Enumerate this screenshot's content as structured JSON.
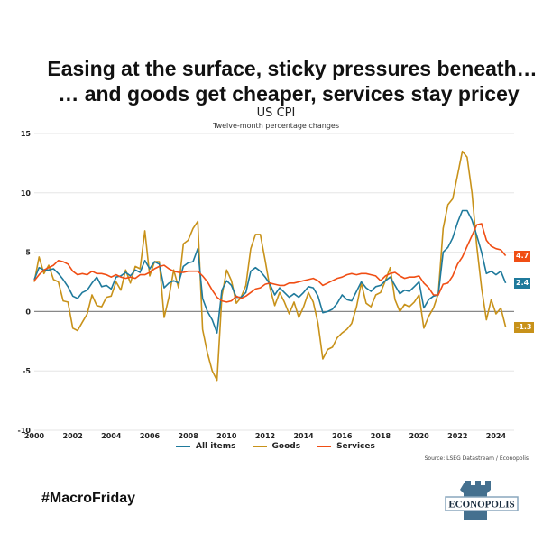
{
  "headline": {
    "line1": "Easing at the surface, sticky pressures beneath…",
    "line2": "… and goods get cheaper, services stay pricey"
  },
  "hashtag": "#MacroFriday",
  "logo": {
    "text": "ECONOPOLIS",
    "color": "#44708f"
  },
  "source": "Source: LSEG Datastream / Econopolis",
  "chart_data": {
    "type": "line",
    "title": "US CPI",
    "subtitle": "Twelve-month percentage changes",
    "xlabel": "",
    "ylabel": "",
    "xlim": [
      2000,
      2024.6
    ],
    "ylim": [
      -10,
      15
    ],
    "yticks": [
      15,
      10,
      5,
      0,
      -5,
      -10
    ],
    "yticklabels": [
      "15",
      "10",
      "5",
      "0",
      "-5",
      "-10"
    ],
    "xticks": [
      2000,
      2002,
      2004,
      2006,
      2008,
      2010,
      2012,
      2014,
      2016,
      2018,
      2020,
      2022,
      2024
    ],
    "xticklabels": [
      "2000",
      "2002",
      "2004",
      "2006",
      "2008",
      "2010",
      "2012",
      "2014",
      "2016",
      "2018",
      "2020",
      "2022",
      "2024"
    ],
    "grid": true,
    "legend_position": "bottom",
    "x": [
      2000.0,
      2000.25,
      2000.5,
      2000.75,
      2001.0,
      2001.25,
      2001.5,
      2001.75,
      2002.0,
      2002.25,
      2002.5,
      2002.75,
      2003.0,
      2003.25,
      2003.5,
      2003.75,
      2004.0,
      2004.25,
      2004.5,
      2004.75,
      2005.0,
      2005.25,
      2005.5,
      2005.75,
      2006.0,
      2006.25,
      2006.5,
      2006.75,
      2007.0,
      2007.25,
      2007.5,
      2007.75,
      2008.0,
      2008.25,
      2008.5,
      2008.75,
      2009.0,
      2009.25,
      2009.5,
      2009.75,
      2010.0,
      2010.25,
      2010.5,
      2010.75,
      2011.0,
      2011.25,
      2011.5,
      2011.75,
      2012.0,
      2012.25,
      2012.5,
      2012.75,
      2013.0,
      2013.25,
      2013.5,
      2013.75,
      2014.0,
      2014.25,
      2014.5,
      2014.75,
      2015.0,
      2015.25,
      2015.5,
      2015.75,
      2016.0,
      2016.25,
      2016.5,
      2016.75,
      2017.0,
      2017.25,
      2017.5,
      2017.75,
      2018.0,
      2018.25,
      2018.5,
      2018.75,
      2019.0,
      2019.25,
      2019.5,
      2019.75,
      2020.0,
      2020.25,
      2020.5,
      2020.75,
      2021.0,
      2021.25,
      2021.5,
      2021.75,
      2022.0,
      2022.25,
      2022.5,
      2022.75,
      2023.0,
      2023.25,
      2023.5,
      2023.75,
      2024.0,
      2024.25,
      2024.5
    ],
    "series": [
      {
        "name": "All items",
        "color": "#1f7a9c",
        "values": [
          2.7,
          3.7,
          3.5,
          3.5,
          3.6,
          3.2,
          2.7,
          2.1,
          1.3,
          1.1,
          1.6,
          1.8,
          2.4,
          2.9,
          2.1,
          2.2,
          1.9,
          2.9,
          3.0,
          3.3,
          3.0,
          3.5,
          3.3,
          4.3,
          3.6,
          4.2,
          4.0,
          2.0,
          2.4,
          2.6,
          2.4,
          3.8,
          4.1,
          4.2,
          5.3,
          1.1,
          0.0,
          -0.7,
          -1.8,
          1.8,
          2.6,
          2.2,
          1.2,
          1.2,
          1.6,
          3.4,
          3.7,
          3.4,
          2.9,
          2.3,
          1.4,
          2.0,
          1.6,
          1.2,
          1.5,
          1.2,
          1.6,
          2.1,
          2.0,
          1.3,
          -0.1,
          0.0,
          0.2,
          0.7,
          1.4,
          1.0,
          0.9,
          1.7,
          2.5,
          2.0,
          1.7,
          2.1,
          2.2,
          2.6,
          2.9,
          2.2,
          1.5,
          1.8,
          1.7,
          2.1,
          2.5,
          0.3,
          1.0,
          1.3,
          1.4,
          5.0,
          5.4,
          6.2,
          7.5,
          8.5,
          8.5,
          7.7,
          6.4,
          5.0,
          3.2,
          3.4,
          3.1,
          3.4,
          2.4
        ]
      },
      {
        "name": "Goods",
        "color": "#c8921a",
        "values": [
          2.5,
          4.6,
          3.2,
          3.9,
          2.7,
          2.5,
          0.9,
          0.8,
          -1.4,
          -1.6,
          -0.9,
          -0.2,
          1.4,
          0.5,
          0.4,
          1.2,
          1.3,
          2.5,
          1.8,
          3.5,
          2.4,
          3.8,
          3.6,
          6.8,
          3.0,
          4.2,
          4.2,
          -0.5,
          1.2,
          3.5,
          2.0,
          5.7,
          6.0,
          7.0,
          7.6,
          -1.5,
          -3.5,
          -5.0,
          -5.8,
          1.3,
          3.5,
          2.6,
          0.7,
          1.2,
          2.2,
          5.3,
          6.5,
          6.5,
          4.3,
          2.0,
          0.5,
          1.6,
          0.8,
          -0.2,
          0.8,
          -0.5,
          0.4,
          1.6,
          0.8,
          -1.0,
          -4.0,
          -3.2,
          -3.0,
          -2.2,
          -1.8,
          -1.5,
          -1.0,
          0.4,
          2.4,
          0.7,
          0.4,
          1.4,
          1.6,
          2.6,
          3.7,
          1.0,
          0.0,
          0.6,
          0.4,
          0.8,
          1.4,
          -1.4,
          -0.4,
          0.3,
          1.5,
          7.0,
          9.0,
          9.5,
          11.5,
          13.5,
          13.0,
          10.0,
          5.5,
          2.0,
          -0.7,
          1.0,
          -0.2,
          0.3,
          -1.3
        ]
      },
      {
        "name": "Services",
        "color": "#f04e14",
        "values": [
          2.6,
          3.1,
          3.5,
          3.7,
          3.9,
          4.3,
          4.2,
          4.0,
          3.4,
          3.1,
          3.2,
          3.1,
          3.4,
          3.2,
          3.2,
          3.1,
          2.9,
          3.1,
          2.9,
          2.8,
          2.9,
          2.8,
          3.1,
          3.1,
          3.3,
          3.6,
          3.8,
          3.9,
          3.6,
          3.4,
          3.3,
          3.3,
          3.4,
          3.4,
          3.4,
          3.0,
          2.5,
          1.8,
          1.2,
          0.9,
          0.8,
          0.9,
          1.3,
          1.1,
          1.3,
          1.6,
          1.9,
          2.0,
          2.3,
          2.4,
          2.3,
          2.2,
          2.2,
          2.4,
          2.4,
          2.5,
          2.6,
          2.7,
          2.8,
          2.6,
          2.2,
          2.4,
          2.6,
          2.8,
          2.9,
          3.1,
          3.2,
          3.1,
          3.2,
          3.2,
          3.1,
          3.0,
          2.6,
          3.0,
          3.2,
          3.3,
          3.0,
          2.8,
          2.9,
          2.9,
          3.0,
          2.4,
          2.0,
          1.4,
          1.4,
          2.3,
          2.4,
          3.0,
          4.0,
          4.6,
          5.5,
          6.4,
          7.3,
          7.4,
          6.0,
          5.5,
          5.3,
          5.2,
          4.7
        ]
      }
    ],
    "end_labels": [
      {
        "series": "Services",
        "text": "4.7",
        "color": "#f04e14"
      },
      {
        "series": "All items",
        "text": "2.4",
        "color": "#1f7a9c"
      },
      {
        "series": "Goods",
        "text": "-1.3",
        "color": "#c8921a"
      }
    ]
  }
}
